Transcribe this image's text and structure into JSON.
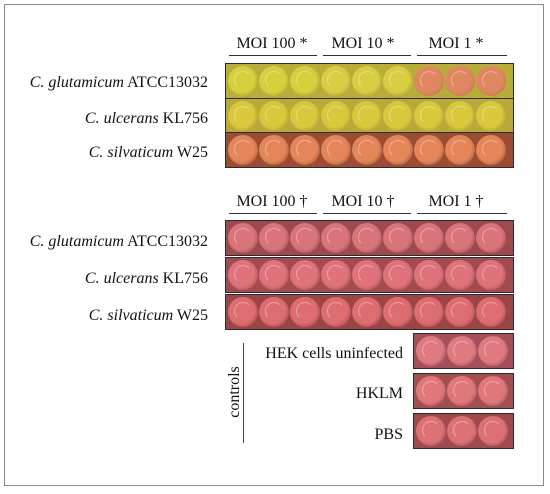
{
  "top_panel": {
    "columns": [
      "MOI 100 *",
      "MOI 10 *",
      "MOI 1 *"
    ],
    "rows": [
      {
        "species": "C. glutamicum",
        "strain": "ATCC13032",
        "well_color": "#d7cf3c"
      },
      {
        "species": "C. ulcerans",
        "strain": "KL756",
        "well_color": "#d9c73c"
      },
      {
        "species": "C. silvaticum",
        "strain": "W25",
        "well_color": "#e4865a"
      }
    ]
  },
  "bottom_panel": {
    "columns": [
      "MOI 100 †",
      "MOI 10 †",
      "MOI 1 †"
    ],
    "rows": [
      {
        "species": "C. glutamicum",
        "strain": "ATCC13032",
        "well_color": "#d9747b"
      },
      {
        "species": "C. ulcerans",
        "strain": "KL756",
        "well_color": "#e0737a"
      },
      {
        "species": "C. silvaticum",
        "strain": "W25",
        "well_color": "#de6d70"
      }
    ]
  },
  "controls": {
    "title": "controls",
    "items": [
      {
        "label": "HEK cells uninfected",
        "well_color": "#df7a80"
      },
      {
        "label": "HKLM",
        "well_color": "#e0787a"
      },
      {
        "label": "PBS",
        "well_color": "#dd7276"
      }
    ]
  },
  "colors": {
    "top_row1_mid": "#d9cd44",
    "top_row1_last": "#e08762",
    "strip_dark": "#3a2a1a"
  }
}
